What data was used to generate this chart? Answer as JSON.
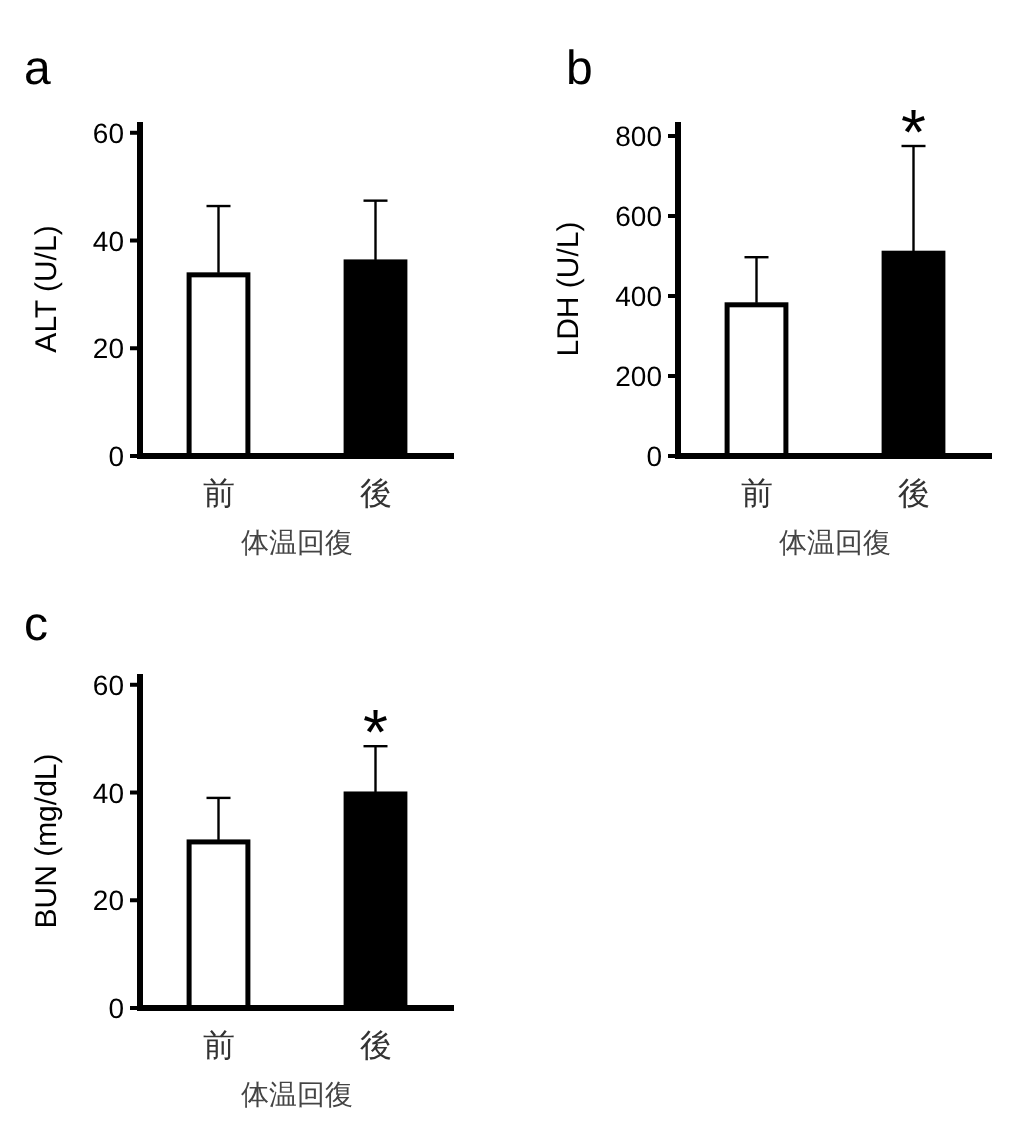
{
  "chart_data": [
    {
      "type": "bar",
      "title": "a",
      "xlabel": "体温回復",
      "ylabel": "ALT (U/L)",
      "categories": [
        "前",
        "後"
      ],
      "values": [
        34.0,
        36.4
      ],
      "colors": [
        "#ffffff",
        "#000000"
      ],
      "errors": [
        [
          34.0,
          46.4
        ],
        [
          36.4,
          47.4
        ]
      ],
      "ylim": [
        0,
        62
      ],
      "yticks": [
        0,
        20,
        40,
        60
      ]
    },
    {
      "type": "bar",
      "title": "b",
      "xlabel": "体温回復",
      "ylabel": "LDH (U/L)",
      "categories": [
        "前",
        "後"
      ],
      "values": [
        383,
        512
      ],
      "colors": [
        "#ffffff",
        "#000000"
      ],
      "errors": [
        [
          383,
          497
        ],
        [
          512,
          775
        ]
      ],
      "ylim": [
        0,
        835
      ],
      "yticks": [
        0,
        200,
        400,
        600,
        800
      ],
      "annotations": [
        "*"
      ]
    },
    {
      "type": "bar",
      "title": "c",
      "xlabel": "体温回復",
      "ylabel": "BUN (mg/dL)",
      "categories": [
        "前",
        "後"
      ],
      "values": [
        31.2,
        40.1
      ],
      "colors": [
        "#ffffff",
        "#000000"
      ],
      "errors": [
        [
          31.2,
          39.0
        ],
        [
          40.1,
          48.6
        ]
      ],
      "ylim": [
        0,
        62
      ],
      "yticks": [
        0,
        20,
        40,
        60
      ],
      "annotations": [
        "*"
      ]
    }
  ]
}
